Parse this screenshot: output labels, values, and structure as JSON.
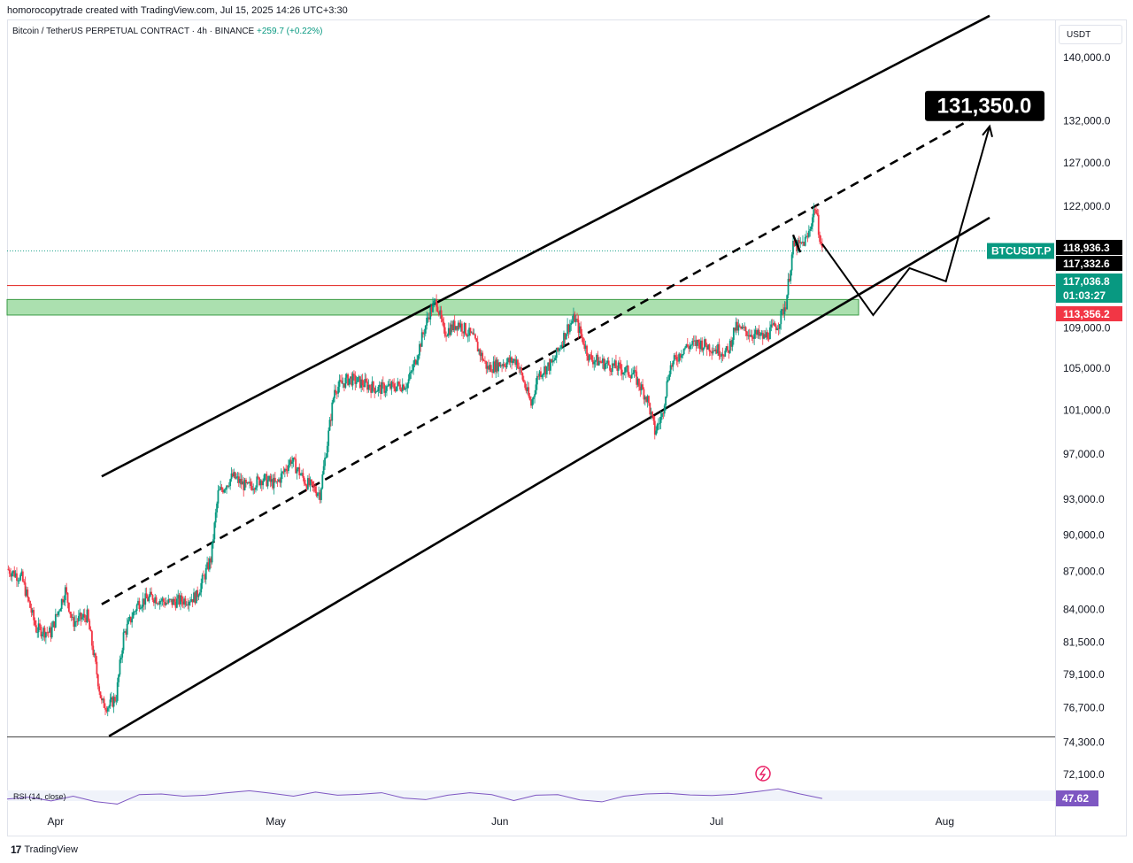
{
  "header": {
    "author_line": "homorocopytrade created with TradingView.com, Jul 15, 2025 14:26 UTC+3:30"
  },
  "legend": {
    "symbol_line": "Bitcoin / TetherUS PERPETUAL CONTRACT · 4h · BINANCE",
    "change": "+259.7 (+0.22%)"
  },
  "currency_label": "USDT",
  "footer": {
    "brand": "TradingView",
    "logo_glyph": "17"
  },
  "colors": {
    "up": "#089981",
    "down": "#f23645",
    "zone": "#8fd694",
    "resistance": "#e53935",
    "black": "#000000",
    "rsi": "#7e57c2",
    "rsi_band": "#f0f3fa"
  },
  "chart_data": {
    "type": "candlestick",
    "symbol": "BTCUSDT.P",
    "timeframe": "4h",
    "y_scale": "log",
    "ylim": [
      72100,
      145000
    ],
    "x_range": [
      "2025-03-25",
      "2025-08-16"
    ],
    "price_ticks": [
      "140,000.0",
      "132,000.0",
      "127,000.0",
      "122,000.0",
      "109,000.0",
      "105,000.0",
      "101,000.0",
      "97,000.0",
      "93,000.0",
      "90,000.0",
      "87,000.0",
      "84,000.0",
      "81,500.0",
      "79,100.0",
      "76,700.0",
      "74,300.0",
      "72,100.0"
    ],
    "price_tick_values": [
      140000,
      132000,
      127000,
      122000,
      109000,
      105000,
      101000,
      97000,
      93000,
      90000,
      87000,
      84000,
      81500,
      79100,
      76700,
      74300,
      72100
    ],
    "time_ticks": [
      "Apr",
      "May",
      "Jun",
      "Jul",
      "Aug"
    ],
    "time_tick_dates": [
      "2025-04-01",
      "2025-05-01",
      "2025-06-01",
      "2025-07-01",
      "2025-08-01"
    ],
    "price_path": [
      [
        "2025-03-25",
        87200
      ],
      [
        "2025-03-27",
        86500
      ],
      [
        "2025-03-29",
        82500
      ],
      [
        "2025-03-31",
        82200
      ],
      [
        "2025-04-02",
        85500
      ],
      [
        "2025-04-03",
        83000
      ],
      [
        "2025-04-05",
        83500
      ],
      [
        "2025-04-07",
        77000
      ],
      [
        "2025-04-08",
        76800
      ],
      [
        "2025-04-09",
        77500
      ],
      [
        "2025-04-10",
        82000
      ],
      [
        "2025-04-12",
        84500
      ],
      [
        "2025-04-14",
        85000
      ],
      [
        "2025-04-16",
        84500
      ],
      [
        "2025-04-18",
        84700
      ],
      [
        "2025-04-20",
        85000
      ],
      [
        "2025-04-22",
        88000
      ],
      [
        "2025-04-23",
        93500
      ],
      [
        "2025-04-25",
        95000
      ],
      [
        "2025-04-27",
        94000
      ],
      [
        "2025-04-29",
        94800
      ],
      [
        "2025-05-01",
        94300
      ],
      [
        "2025-05-03",
        96500
      ],
      [
        "2025-05-05",
        94500
      ],
      [
        "2025-05-07",
        93500
      ],
      [
        "2025-05-08",
        98000
      ],
      [
        "2025-05-09",
        103000
      ],
      [
        "2025-05-11",
        104000
      ],
      [
        "2025-05-13",
        103500
      ],
      [
        "2025-05-15",
        103000
      ],
      [
        "2025-05-17",
        103200
      ],
      [
        "2025-05-19",
        103500
      ],
      [
        "2025-05-20",
        105500
      ],
      [
        "2025-05-22",
        110500
      ],
      [
        "2025-05-23",
        111800
      ],
      [
        "2025-05-24",
        108500
      ],
      [
        "2025-05-26",
        109500
      ],
      [
        "2025-05-28",
        108000
      ],
      [
        "2025-05-30",
        105000
      ],
      [
        "2025-06-01",
        105500
      ],
      [
        "2025-06-03",
        105800
      ],
      [
        "2025-06-05",
        101500
      ],
      [
        "2025-06-06",
        104500
      ],
      [
        "2025-06-08",
        105500
      ],
      [
        "2025-06-10",
        109000
      ],
      [
        "2025-06-11",
        110000
      ],
      [
        "2025-06-13",
        106000
      ],
      [
        "2025-06-15",
        105500
      ],
      [
        "2025-06-17",
        105000
      ],
      [
        "2025-06-19",
        104500
      ],
      [
        "2025-06-21",
        102000
      ],
      [
        "2025-06-22",
        99000
      ],
      [
        "2025-06-23",
        100500
      ],
      [
        "2025-06-24",
        105000
      ],
      [
        "2025-06-26",
        107000
      ],
      [
        "2025-06-28",
        107500
      ],
      [
        "2025-06-30",
        107000
      ],
      [
        "2025-07-02",
        106500
      ],
      [
        "2025-07-03",
        109000
      ],
      [
        "2025-07-05",
        108500
      ],
      [
        "2025-07-07",
        108000
      ],
      [
        "2025-07-09",
        109500
      ],
      [
        "2025-07-10",
        111500
      ],
      [
        "2025-07-11",
        117500
      ],
      [
        "2025-07-12",
        117600
      ],
      [
        "2025-07-13",
        118500
      ],
      [
        "2025-07-14",
        122000
      ],
      [
        "2025-07-15",
        117000
      ]
    ],
    "channel": {
      "upper": [
        [
          "2025-04-07",
          95000
        ],
        [
          "2025-08-07",
          145500
        ]
      ],
      "middle": [
        [
          "2025-04-07",
          84400
        ],
        [
          "2025-08-07",
          133500
        ]
      ],
      "lower": [
        [
          "2025-04-08",
          74700
        ],
        [
          "2025-08-07",
          120700
        ]
      ]
    },
    "supply_zone": [
      110300,
      111900
    ],
    "projection_path": [
      [
        "2025-07-15",
        117800
      ],
      [
        "2025-07-22",
        110300
      ],
      [
        "2025-07-27",
        115200
      ],
      [
        "2025-08-01",
        113800
      ],
      [
        "2025-08-07",
        131350
      ]
    ],
    "annotations": [
      {
        "text": "131,350.0",
        "value": 131350
      }
    ],
    "horizontal_lines": [
      {
        "value": 113356.2,
        "color": "#e53935"
      },
      {
        "value": 74650,
        "color": "#555555"
      }
    ],
    "price_labels": [
      {
        "text": "118,936.3",
        "value": 118936.3,
        "bg": "#000000"
      },
      {
        "text": "117,332.6",
        "value": 117332.6,
        "bg": "#000000"
      },
      {
        "text": "117,036.8",
        "value": 117036.8,
        "bg": "#089981"
      },
      {
        "text": "01:03:27",
        "value": 117036.8,
        "bg": "#089981"
      },
      {
        "text": "113,356.2",
        "value": 113356.2,
        "bg": "#f23645"
      }
    ],
    "symbol_label": "BTCUSDT.P",
    "rsi": {
      "label": "RSI (14, close)",
      "value": "47.62",
      "series": [
        46,
        52,
        40,
        55,
        38,
        30,
        60,
        62,
        55,
        58,
        66,
        72,
        64,
        55,
        68,
        58,
        61,
        66,
        49,
        44,
        58,
        66,
        60,
        41,
        58,
        60,
        43,
        37,
        55,
        62,
        64,
        59,
        57,
        61,
        69,
        78,
        62,
        47.62
      ]
    }
  }
}
